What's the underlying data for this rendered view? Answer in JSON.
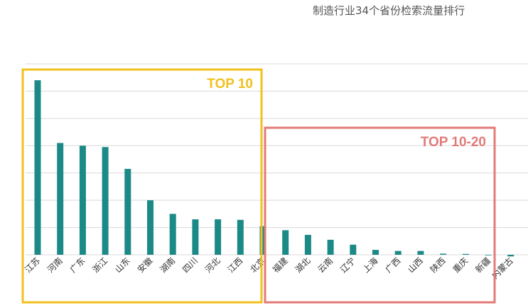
{
  "chart_data": {
    "type": "bar",
    "title": "制造行业34个省份检索流量排行",
    "categories": [
      "江苏",
      "河南",
      "广东",
      "浙江",
      "山东",
      "安徽",
      "湖南",
      "四川",
      "河北",
      "江西",
      "北京",
      "福建",
      "湖北",
      "云南",
      "辽宁",
      "上海",
      "广西",
      "山西",
      "陕西",
      "重庆",
      "新疆",
      "内蒙古"
    ],
    "values": [
      64,
      41,
      40,
      39.5,
      31.5,
      20,
      15,
      13,
      13,
      12.8,
      10.5,
      9,
      7.3,
      5.5,
      3.7,
      1.8,
      1.4,
      1.4,
      0.4,
      0.3,
      -0.2,
      -0.6
    ],
    "ylim": [
      -5,
      70
    ],
    "grid": true,
    "bar_color": "#1b8a86",
    "groups": [
      {
        "label": "TOP 10",
        "color": "#f2c01e",
        "from": 0,
        "to": 9
      },
      {
        "label": "TOP 10-20",
        "color": "#e27b78",
        "from": 10,
        "to": 19
      }
    ]
  }
}
